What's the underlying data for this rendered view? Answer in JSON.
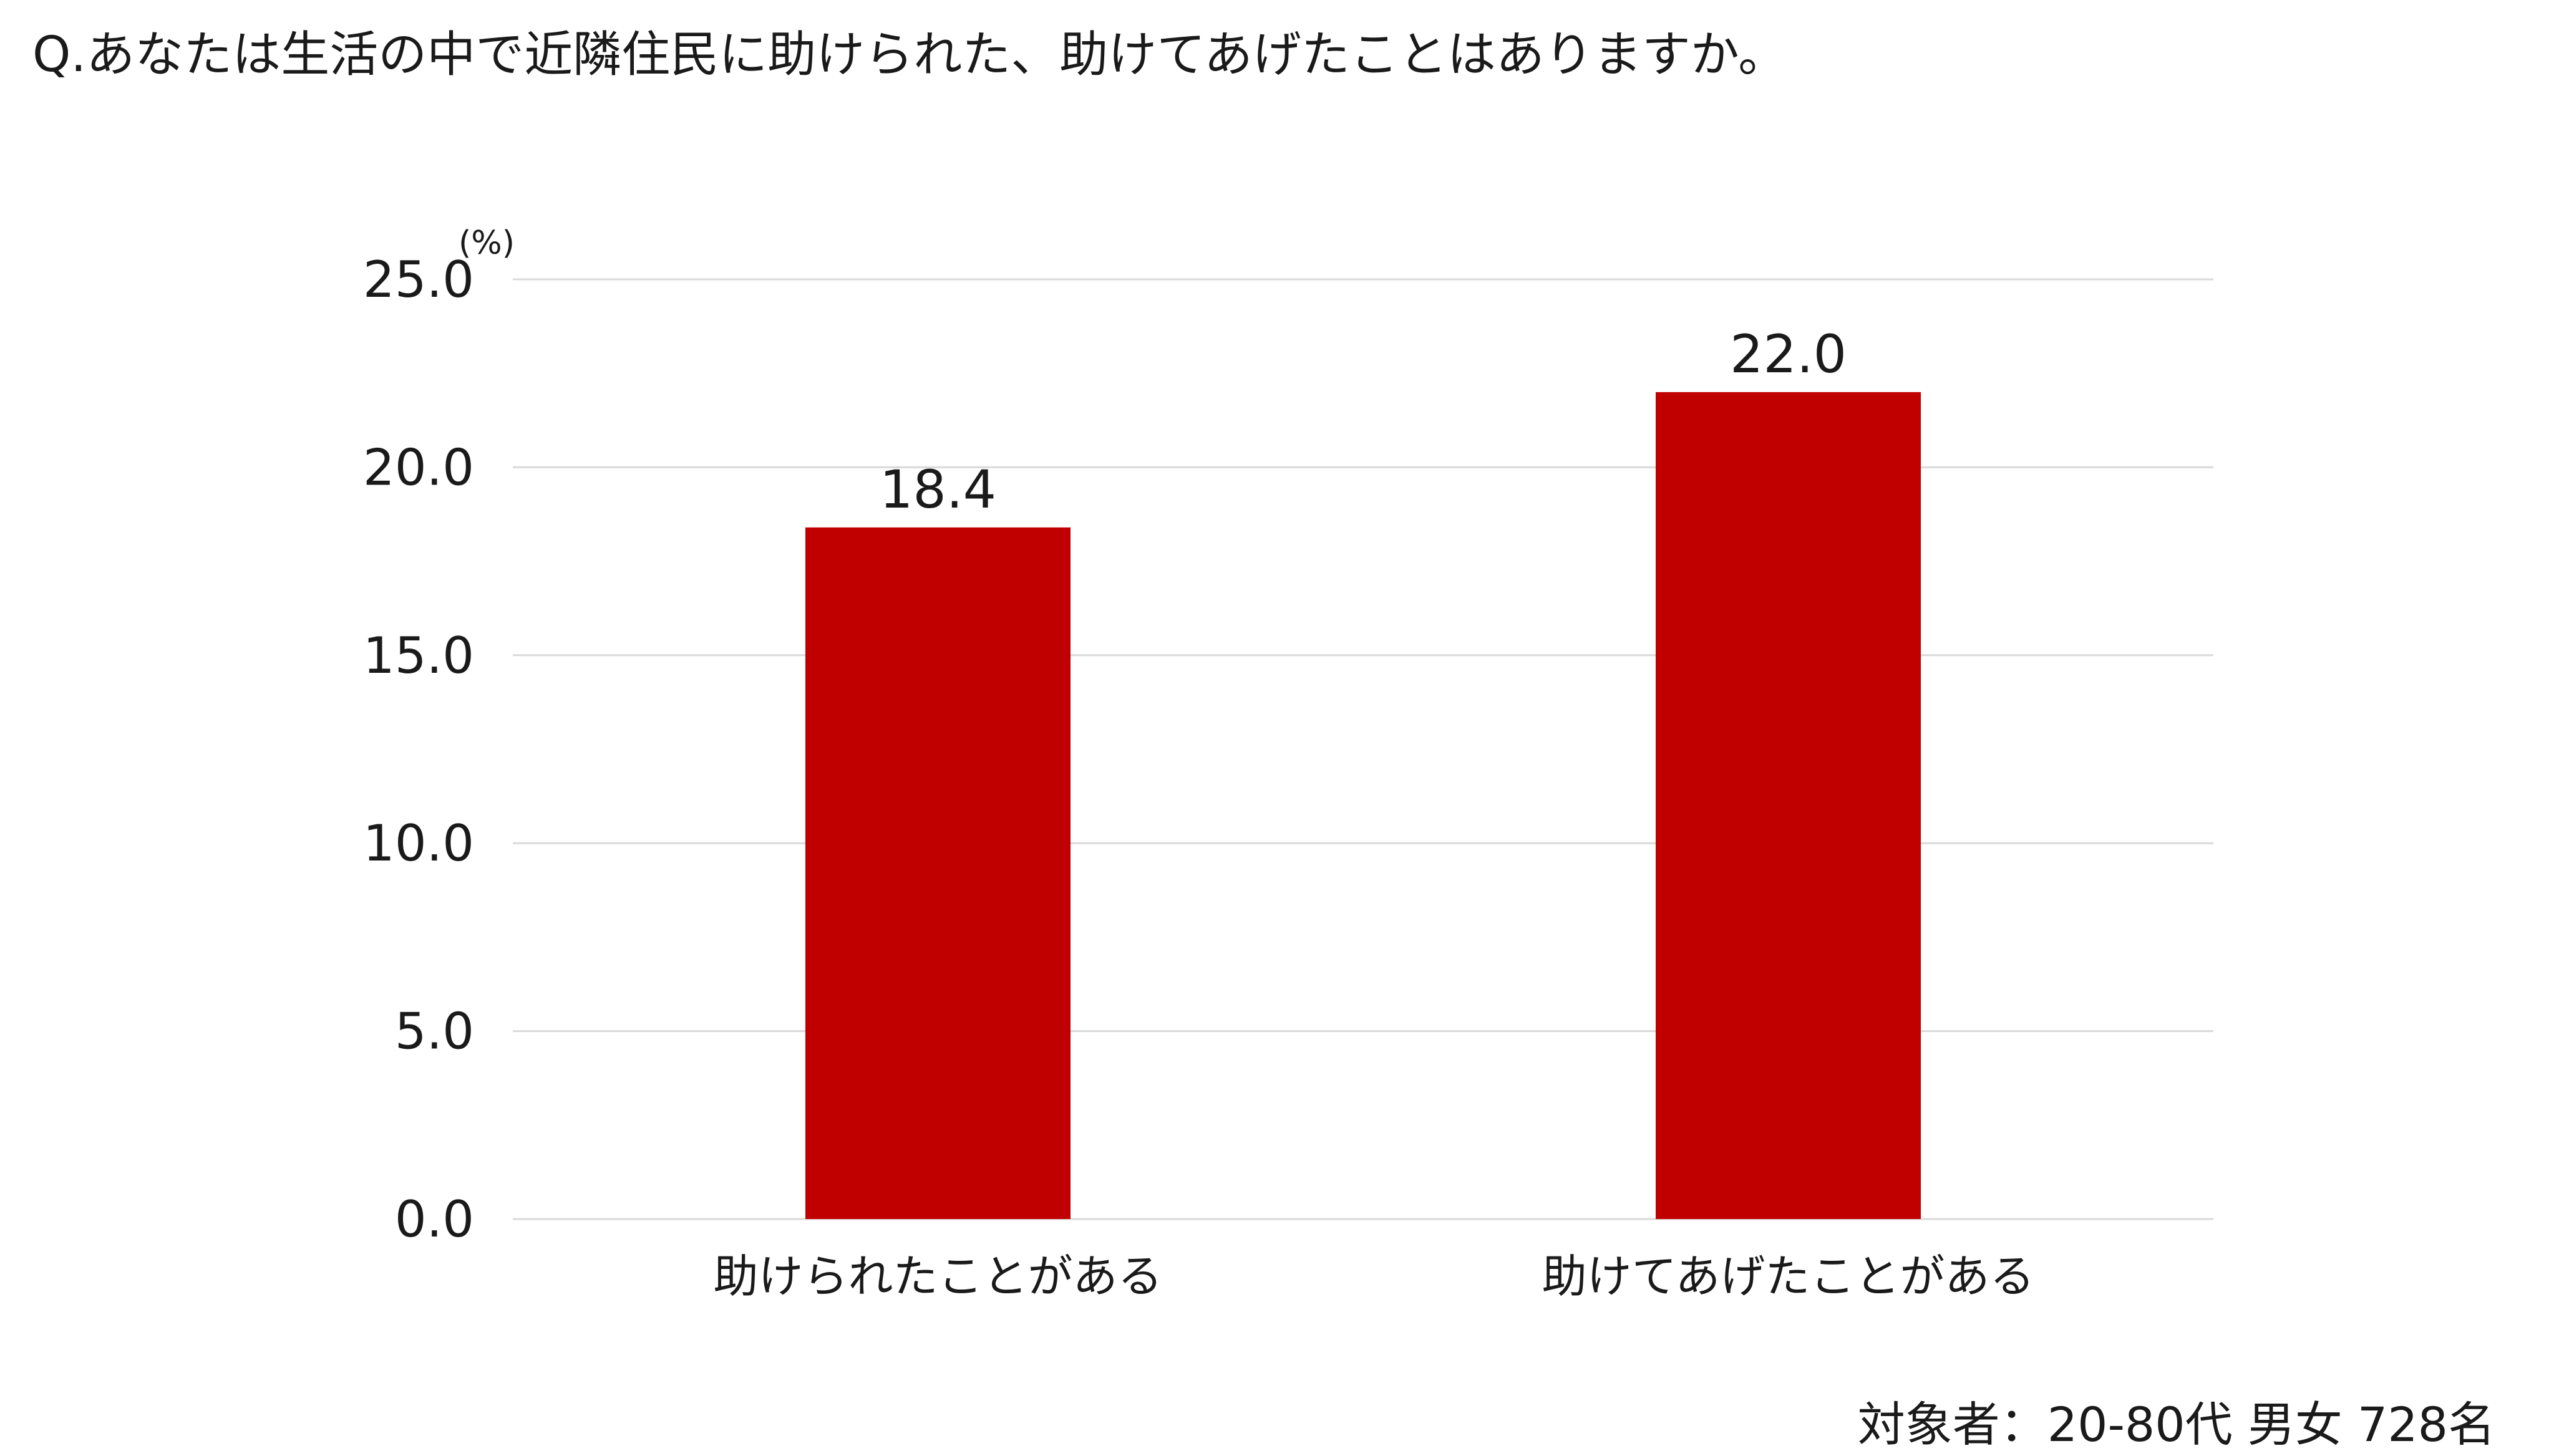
{
  "title": "Q.あなたは生活の中で近隣住民に助けられた、助けてあげたことはありますか。",
  "footnote": "対象者：20-80代 男女 728名",
  "chart_data": {
    "type": "bar",
    "unit_label": "(%)",
    "categories": [
      "助けられたことがある",
      "助けてあげたことがある"
    ],
    "values": [
      18.4,
      22.0
    ],
    "value_labels": [
      "18.4",
      "22.0"
    ],
    "ylim": [
      0,
      25
    ],
    "yticks": [
      "0.0",
      "5.0",
      "10.0",
      "15.0",
      "20.0",
      "25.0"
    ],
    "grid": true,
    "bar_color": "#c00000",
    "grid_color": "#d9d9d9"
  }
}
